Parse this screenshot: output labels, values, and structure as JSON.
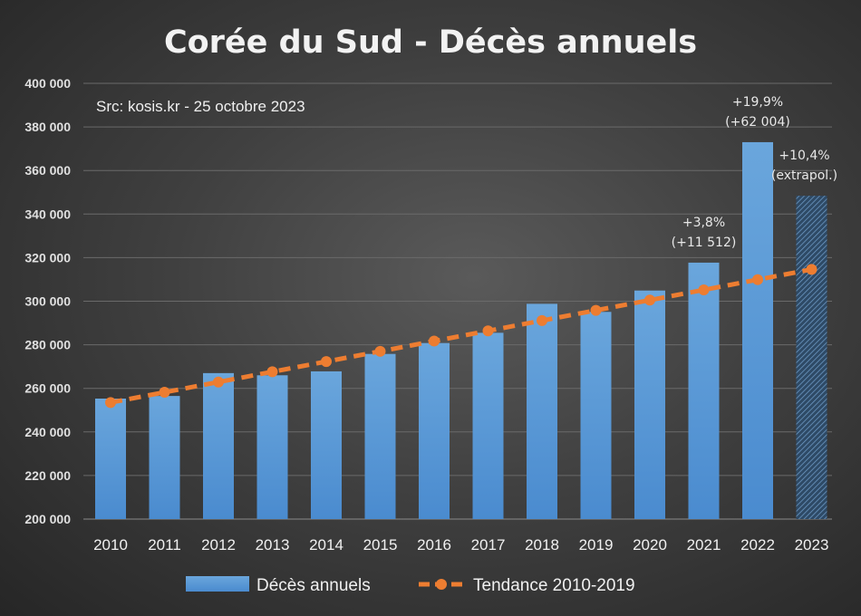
{
  "chart_data": {
    "type": "bar",
    "title": "Corée du Sud - Décès annuels",
    "source_note": "Src: kosis.kr - 25 octobre 2023",
    "categories": [
      "2010",
      "2011",
      "2012",
      "2013",
      "2014",
      "2015",
      "2016",
      "2017",
      "2018",
      "2019",
      "2020",
      "2021",
      "2022",
      "2023"
    ],
    "ylim": [
      200000,
      400000
    ],
    "yticks": [
      "200 000",
      "220 000",
      "240 000",
      "260 000",
      "280 000",
      "300 000",
      "320 000",
      "340 000",
      "360 000",
      "380 000",
      "400 000"
    ],
    "grid": true,
    "series": [
      {
        "name": "Décès annuels",
        "type": "bar",
        "color": "#5b9bd5",
        "values": [
          255300,
          256500,
          267000,
          266000,
          267800,
          275800,
          280800,
          285500,
          298800,
          295100,
          304900,
          317700,
          373000,
          348400
        ],
        "hatched_last": true
      },
      {
        "name": "Tendance 2010-2019",
        "type": "line",
        "color": "#ed7d31",
        "dashed": true,
        "values": [
          253500,
          258200,
          262900,
          267600,
          272300,
          277000,
          281700,
          286400,
          291100,
          295800,
          300500,
          305200,
          309900,
          314600
        ]
      }
    ],
    "annotations": [
      {
        "category": "2021",
        "lines": [
          "+3,8%",
          "(+11 512)"
        ]
      },
      {
        "category": "2022",
        "lines": [
          "+19,9%",
          "(+62 004)"
        ]
      },
      {
        "category": "2023",
        "lines": [
          "+10,4%",
          "(extrapol.)"
        ]
      }
    ],
    "legend_position": "bottom"
  }
}
